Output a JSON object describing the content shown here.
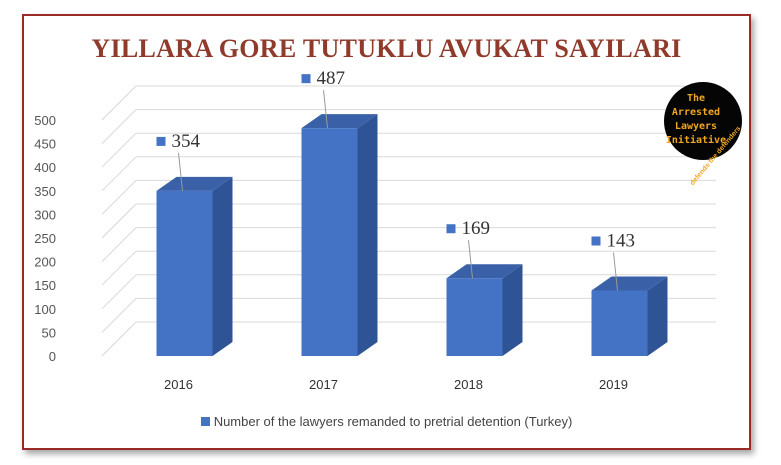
{
  "chart_data": {
    "type": "bar",
    "title": "YILLARA GORE TUTUKLU AVUKAT SAYILARI",
    "categories": [
      "2016",
      "2017",
      "2018",
      "2019"
    ],
    "series": [
      {
        "name": "Number of the lawyers remanded to pretrial detention (Turkey)",
        "values": [
          354,
          487,
          169,
          143
        ]
      }
    ],
    "data_labels": [
      "354",
      "487",
      "169",
      "143"
    ],
    "y_ticks": [
      "0",
      "50",
      "100",
      "150",
      "200",
      "250",
      "300",
      "350",
      "400",
      "450",
      "500"
    ],
    "ylim": [
      0,
      500
    ],
    "grid": true,
    "legend_position": "bottom",
    "style": "3d-column",
    "colors": {
      "bar_front": "#4472c4",
      "bar_side": "#2f5496",
      "bar_top": "#3a61a8",
      "title": "#8f3a2b",
      "frame_border": "#9b2a26"
    }
  },
  "logo": {
    "lines": [
      "The",
      "Arrested",
      "Lawyers",
      "Initiative"
    ],
    "tagline": "defends the defenders",
    "text_color": "#f0a623"
  }
}
